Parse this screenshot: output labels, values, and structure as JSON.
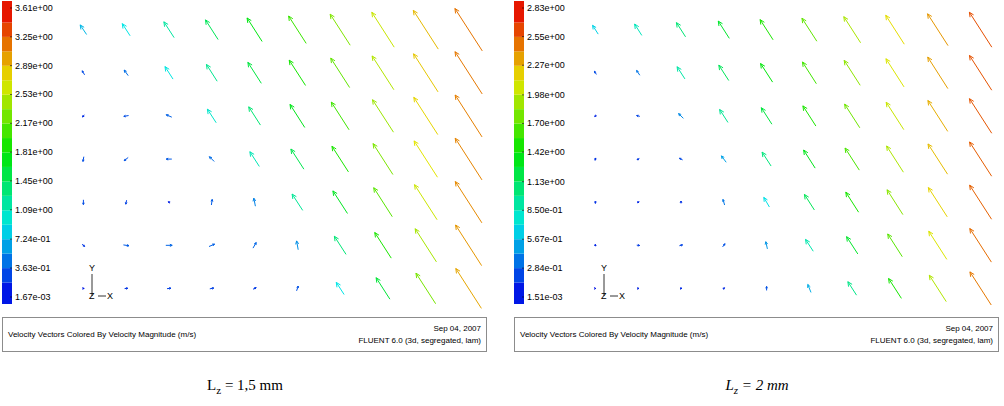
{
  "chart_data": [
    {
      "type": "vector_field",
      "title": "Velocity Vectors Colored By Velocity Magnitude (m/s)",
      "annotations": [
        "Sep 04, 2007",
        "FLUENT 6.0 (3d, segregated, lam)"
      ],
      "triad": {
        "y": "Y",
        "z": "Z",
        "x": "X"
      },
      "caption": {
        "symbol": "L",
        "subscript": "z",
        "text": " = 1,5 mm"
      },
      "xlim": [
        0,
        1
      ],
      "ylim": [
        0,
        1
      ],
      "colorbar": {
        "range": [
          0.00167,
          3.61
        ],
        "ticks": [
          {
            "value": 3.61,
            "label": "3.61e+00"
          },
          {
            "value": 3.25,
            "label": "3.25e+00"
          },
          {
            "value": 2.89,
            "label": "2.89e+00"
          },
          {
            "value": 2.53,
            "label": "2.53e+00"
          },
          {
            "value": 2.17,
            "label": "2.17e+00"
          },
          {
            "value": 1.81,
            "label": "1.81e+00"
          },
          {
            "value": 1.45,
            "label": "1.45e+00"
          },
          {
            "value": 1.09,
            "label": "1.09e+00"
          },
          {
            "value": 0.724,
            "label": "7.24e-01"
          },
          {
            "value": 0.363,
            "label": "3.63e-01"
          },
          {
            "value": 0.00167,
            "label": "1.67e-03"
          }
        ]
      },
      "x": [
        0.05,
        0.15,
        0.25,
        0.35,
        0.45,
        0.55,
        0.65,
        0.75,
        0.85,
        0.95,
        0.05,
        0.15,
        0.25,
        0.35,
        0.45,
        0.55,
        0.65,
        0.75,
        0.85,
        0.95,
        0.05,
        0.15,
        0.25,
        0.35,
        0.45,
        0.55,
        0.65,
        0.75,
        0.85,
        0.95,
        0.05,
        0.15,
        0.25,
        0.35,
        0.45,
        0.55,
        0.65,
        0.75,
        0.85,
        0.95,
        0.05,
        0.15,
        0.25,
        0.35,
        0.45,
        0.55,
        0.65,
        0.75,
        0.85,
        0.95,
        0.05,
        0.15,
        0.25,
        0.35,
        0.45,
        0.55,
        0.65,
        0.75,
        0.85,
        0.95,
        0.05,
        0.15,
        0.25,
        0.35,
        0.45,
        0.55,
        0.65,
        0.75,
        0.85,
        0.95
      ],
      "y": [
        0.91,
        0.91,
        0.91,
        0.91,
        0.91,
        0.91,
        0.91,
        0.91,
        0.91,
        0.91,
        0.77,
        0.77,
        0.77,
        0.77,
        0.77,
        0.77,
        0.77,
        0.77,
        0.77,
        0.77,
        0.63,
        0.63,
        0.63,
        0.63,
        0.63,
        0.63,
        0.63,
        0.63,
        0.63,
        0.63,
        0.49,
        0.49,
        0.49,
        0.49,
        0.49,
        0.49,
        0.49,
        0.49,
        0.49,
        0.49,
        0.35,
        0.35,
        0.35,
        0.35,
        0.35,
        0.35,
        0.35,
        0.35,
        0.35,
        0.35,
        0.21,
        0.21,
        0.21,
        0.21,
        0.21,
        0.21,
        0.21,
        0.21,
        0.21,
        0.21,
        0.07,
        0.07,
        0.07,
        0.07,
        0.07,
        0.07,
        0.07,
        0.07,
        0.07,
        0.07
      ],
      "u": [
        -0.4,
        -0.49,
        -0.64,
        -0.79,
        -0.94,
        -1.1,
        -1.25,
        -1.4,
        -1.56,
        -1.71,
        -0.15,
        -0.25,
        -0.5,
        -0.67,
        -0.84,
        -1.02,
        -1.18,
        -1.36,
        -1.53,
        -1.7,
        -0.12,
        -0.3,
        -0.35,
        -0.55,
        -0.73,
        -0.92,
        -1.11,
        -1.31,
        -1.5,
        -1.68,
        -0.05,
        -0.25,
        -0.35,
        -0.3,
        -0.59,
        -0.81,
        -1.03,
        -1.24,
        -1.46,
        -1.67,
        0.0,
        -0.05,
        -0.1,
        0.05,
        -0.1,
        -0.66,
        -0.91,
        -1.16,
        -1.41,
        -1.66,
        0.15,
        0.35,
        0.4,
        0.35,
        0.2,
        -0.1,
        -0.73,
        -1.03,
        -1.33,
        -1.63,
        0.1,
        0.2,
        0.25,
        0.25,
        0.2,
        0.1,
        -0.49,
        -0.86,
        -1.23,
        -1.6
      ],
      "v": [
        0.6,
        0.76,
        0.99,
        1.23,
        1.47,
        1.71,
        1.94,
        2.18,
        2.42,
        2.65,
        0.25,
        0.35,
        0.78,
        1.05,
        1.31,
        1.58,
        1.84,
        2.11,
        2.38,
        2.64,
        -0.12,
        -0.05,
        0.15,
        0.85,
        1.14,
        1.44,
        1.73,
        2.03,
        2.33,
        2.62,
        -0.3,
        -0.2,
        0.0,
        0.3,
        0.92,
        1.26,
        1.6,
        1.93,
        2.27,
        2.6,
        -0.3,
        -0.25,
        0.05,
        0.35,
        0.5,
        1.02,
        1.41,
        1.81,
        2.19,
        2.58,
        -0.15,
        -0.05,
        0.0,
        0.15,
        0.35,
        0.55,
        1.13,
        1.6,
        2.07,
        2.54,
        0.0,
        0.02,
        0.03,
        0.05,
        0.1,
        0.3,
        0.76,
        1.34,
        1.91,
        2.49
      ]
    },
    {
      "type": "vector_field",
      "title": "Velocity Vectors Colored By Velocity Magnitude (m/s)",
      "annotations": [
        "Sep 04, 2007",
        "FLUENT 6.0 (3d, segregated, lam)"
      ],
      "triad": {
        "y": "Y",
        "z": "Z",
        "x": "X"
      },
      "caption": {
        "symbol": "L",
        "subscript": "z",
        "text": " = 2 mm"
      },
      "xlim": [
        0,
        1
      ],
      "ylim": [
        0,
        1
      ],
      "colorbar": {
        "range": [
          0.00151,
          2.83
        ],
        "ticks": [
          {
            "value": 2.83,
            "label": "2.83e+00"
          },
          {
            "value": 2.55,
            "label": "2.55e+00"
          },
          {
            "value": 2.27,
            "label": "2.27e+00"
          },
          {
            "value": 1.98,
            "label": "1.98e+00"
          },
          {
            "value": 1.7,
            "label": "1.70e+00"
          },
          {
            "value": 1.42,
            "label": "1.42e+00"
          },
          {
            "value": 1.13,
            "label": "1.13e+00"
          },
          {
            "value": 0.85,
            "label": "8.50e-01"
          },
          {
            "value": 0.567,
            "label": "5.67e-01"
          },
          {
            "value": 0.284,
            "label": "2.84e-01"
          },
          {
            "value": 0.00151,
            "label": "1.51e-03"
          }
        ]
      },
      "x": [
        0.05,
        0.15,
        0.25,
        0.35,
        0.45,
        0.55,
        0.65,
        0.75,
        0.85,
        0.95,
        0.05,
        0.15,
        0.25,
        0.35,
        0.45,
        0.55,
        0.65,
        0.75,
        0.85,
        0.95,
        0.05,
        0.15,
        0.25,
        0.35,
        0.45,
        0.55,
        0.65,
        0.75,
        0.85,
        0.95,
        0.05,
        0.15,
        0.25,
        0.35,
        0.45,
        0.55,
        0.65,
        0.75,
        0.85,
        0.95,
        0.05,
        0.15,
        0.25,
        0.35,
        0.45,
        0.55,
        0.65,
        0.75,
        0.85,
        0.95,
        0.05,
        0.15,
        0.25,
        0.35,
        0.45,
        0.55,
        0.65,
        0.75,
        0.85,
        0.95,
        0.05,
        0.15,
        0.25,
        0.35,
        0.45,
        0.55,
        0.65,
        0.75,
        0.85,
        0.95
      ],
      "y": [
        0.91,
        0.91,
        0.91,
        0.91,
        0.91,
        0.91,
        0.91,
        0.91,
        0.91,
        0.91,
        0.77,
        0.77,
        0.77,
        0.77,
        0.77,
        0.77,
        0.77,
        0.77,
        0.77,
        0.77,
        0.63,
        0.63,
        0.63,
        0.63,
        0.63,
        0.63,
        0.63,
        0.63,
        0.63,
        0.63,
        0.49,
        0.49,
        0.49,
        0.49,
        0.49,
        0.49,
        0.49,
        0.49,
        0.49,
        0.49,
        0.35,
        0.35,
        0.35,
        0.35,
        0.35,
        0.35,
        0.35,
        0.35,
        0.35,
        0.35,
        0.21,
        0.21,
        0.21,
        0.21,
        0.21,
        0.21,
        0.21,
        0.21,
        0.21,
        0.21,
        0.07,
        0.07,
        0.07,
        0.07,
        0.07,
        0.07,
        0.07,
        0.07,
        0.07,
        0.07
      ],
      "u": [
        -0.35,
        -0.45,
        -0.57,
        -0.69,
        -0.81,
        -0.93,
        -1.05,
        -1.16,
        -1.28,
        -1.4,
        -0.12,
        -0.2,
        -0.49,
        -0.62,
        -0.75,
        -0.87,
        -1.0,
        -1.13,
        -1.26,
        -1.39,
        -0.08,
        -0.2,
        -0.3,
        -0.52,
        -0.66,
        -0.81,
        -0.95,
        -1.1,
        -1.24,
        -1.39,
        -0.03,
        -0.15,
        -0.2,
        -0.3,
        -0.56,
        -0.72,
        -0.89,
        -1.05,
        -1.22,
        -1.38,
        0.0,
        -0.05,
        0.0,
        -0.1,
        -0.35,
        -0.62,
        -0.8,
        -0.99,
        -1.18,
        -1.37,
        0.08,
        0.18,
        0.2,
        0.15,
        -0.1,
        -0.48,
        -0.7,
        -0.91,
        -1.13,
        -1.35,
        0.05,
        0.1,
        0.12,
        0.1,
        0.0,
        -0.2,
        -0.54,
        -0.8,
        -1.06,
        -1.33
      ],
      "v": [
        0.55,
        0.71,
        0.89,
        1.08,
        1.26,
        1.44,
        1.63,
        1.81,
        1.99,
        2.18,
        0.2,
        0.3,
        0.76,
        0.96,
        1.16,
        1.36,
        1.56,
        1.76,
        1.97,
        2.17,
        -0.08,
        0.05,
        0.3,
        0.81,
        1.03,
        1.26,
        1.48,
        1.71,
        1.93,
        2.16,
        -0.15,
        -0.08,
        0.1,
        0.4,
        0.87,
        1.13,
        1.38,
        1.64,
        1.89,
        2.14,
        -0.15,
        -0.1,
        0.15,
        0.35,
        0.6,
        0.97,
        1.25,
        1.55,
        1.83,
        2.13,
        -0.08,
        -0.02,
        0.05,
        0.2,
        0.45,
        0.74,
        1.08,
        1.42,
        1.76,
        2.1,
        0.0,
        0.01,
        0.03,
        0.08,
        0.25,
        0.5,
        0.84,
        1.24,
        1.65,
        2.07
      ]
    }
  ]
}
